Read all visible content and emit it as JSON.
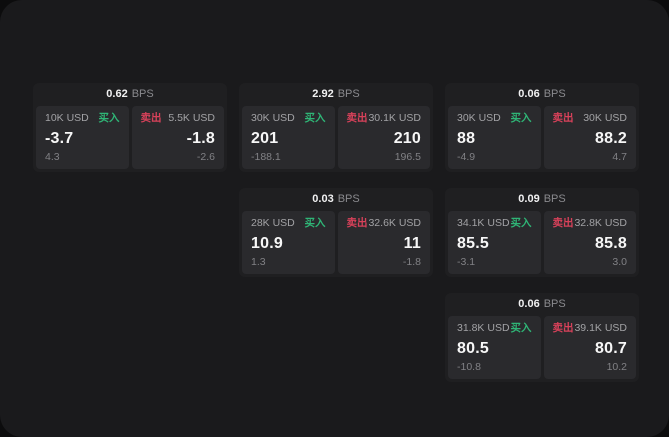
{
  "labels": {
    "buy": "买入",
    "sell": "卖出",
    "bps_unit": "BPS"
  },
  "colors": {
    "buy_green": "#2fb576",
    "sell_red": "#d8415a",
    "window_bg": "#1a1a1c",
    "card_bg": "#1f1f21",
    "pane_bg": "#2a2a2d"
  },
  "cards": [
    {
      "bps": "0.62",
      "buy": {
        "size": "10K USD",
        "value": "-3.7",
        "delta": "4.3"
      },
      "sell": {
        "size": "5.5K USD",
        "value": "-1.8",
        "delta": "-2.6"
      }
    },
    {
      "bps": "2.92",
      "buy": {
        "size": "30K USD",
        "value": "201",
        "delta": "-188.1"
      },
      "sell": {
        "size": "30.1K USD",
        "value": "210",
        "delta": "196.5"
      }
    },
    {
      "bps": "0.06",
      "buy": {
        "size": "30K USD",
        "value": "88",
        "delta": "-4.9"
      },
      "sell": {
        "size": "30K USD",
        "value": "88.2",
        "delta": "4.7"
      }
    },
    {
      "bps": "0.03",
      "buy": {
        "size": "28K USD",
        "value": "10.9",
        "delta": "1.3"
      },
      "sell": {
        "size": "32.6K USD",
        "value": "11",
        "delta": "-1.8"
      }
    },
    {
      "bps": "0.09",
      "buy": {
        "size": "34.1K USD",
        "value": "85.5",
        "delta": "-3.1"
      },
      "sell": {
        "size": "32.8K USD",
        "value": "85.8",
        "delta": "3.0"
      }
    },
    {
      "bps": "0.06",
      "buy": {
        "size": "31.8K USD",
        "value": "80.5",
        "delta": "-10.8"
      },
      "sell": {
        "size": "39.1K USD",
        "value": "80.7",
        "delta": "10.2"
      }
    }
  ]
}
